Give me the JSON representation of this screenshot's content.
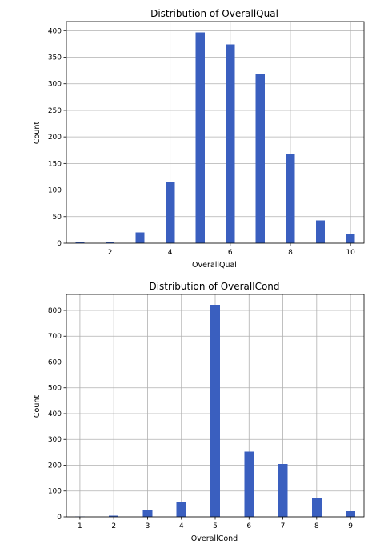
{
  "chart_data": [
    {
      "type": "bar",
      "title": "Distribution of OverallQual",
      "xlabel": "OverallQual",
      "ylabel": "Count",
      "x": [
        1,
        2,
        3,
        4,
        5,
        6,
        7,
        8,
        9,
        10
      ],
      "values": [
        2,
        3,
        20,
        116,
        397,
        374,
        319,
        168,
        43,
        18
      ],
      "xlim": [
        0.55,
        10.45
      ],
      "ylim": [
        0,
        417
      ],
      "xticks": [
        2,
        4,
        6,
        8,
        10
      ],
      "yticks": [
        0,
        50,
        100,
        150,
        200,
        250,
        300,
        350,
        400
      ],
      "grid": true,
      "bar_color": "#3a5fbf"
    },
    {
      "type": "bar",
      "title": "Distribution of OverallCond",
      "xlabel": "OverallCond",
      "ylabel": "Count",
      "x": [
        1,
        2,
        3,
        4,
        5,
        6,
        7,
        8,
        9
      ],
      "values": [
        1,
        5,
        25,
        57,
        821,
        252,
        205,
        72,
        22
      ],
      "xlim": [
        0.6,
        9.4
      ],
      "ylim": [
        0,
        862
      ],
      "xticks": [
        1,
        2,
        3,
        4,
        5,
        6,
        7,
        8,
        9
      ],
      "yticks": [
        0,
        100,
        200,
        300,
        400,
        500,
        600,
        700,
        800
      ],
      "grid": true,
      "bar_color": "#3a5fbf"
    }
  ]
}
